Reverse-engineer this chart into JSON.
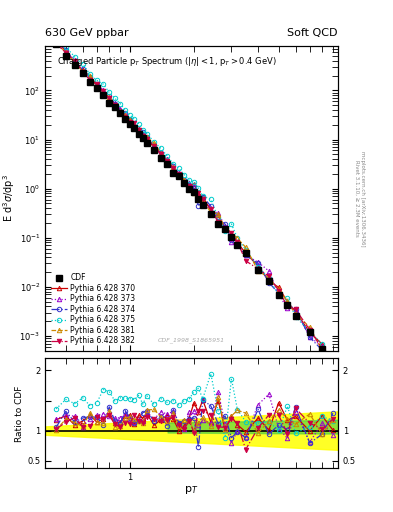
{
  "title_left": "630 GeV ppbar",
  "title_right": "Soft QCD",
  "plot_title": "Charged Particle p$_T$ Spectrum (|$\\eta$| < 1, p$_T$ > 0.4 GeV)",
  "xlabel": "p$_T$",
  "ylabel_top": "E d$^3\\sigma$/dp$^3$",
  "ylabel_bottom": "Ratio to CDF",
  "watermark": "CDF_1998_S1865951",
  "right_label_top": "Rivet 3.1.10, ≥ 2.3M events",
  "right_label_bot": "mcplots.cern.ch [arXiv:1306.3436]",
  "xlim": [
    0.4,
    9.5
  ],
  "ylim_top_lo": 0.0005,
  "ylim_top_hi": 800,
  "ylim_bottom_lo": 0.37,
  "ylim_bottom_hi": 2.2,
  "colors": {
    "CDF": "#000000",
    "370": "#cc0000",
    "373": "#9900cc",
    "374": "#3333cc",
    "375": "#00cccc",
    "381": "#cc8800",
    "382": "#cc0044"
  }
}
